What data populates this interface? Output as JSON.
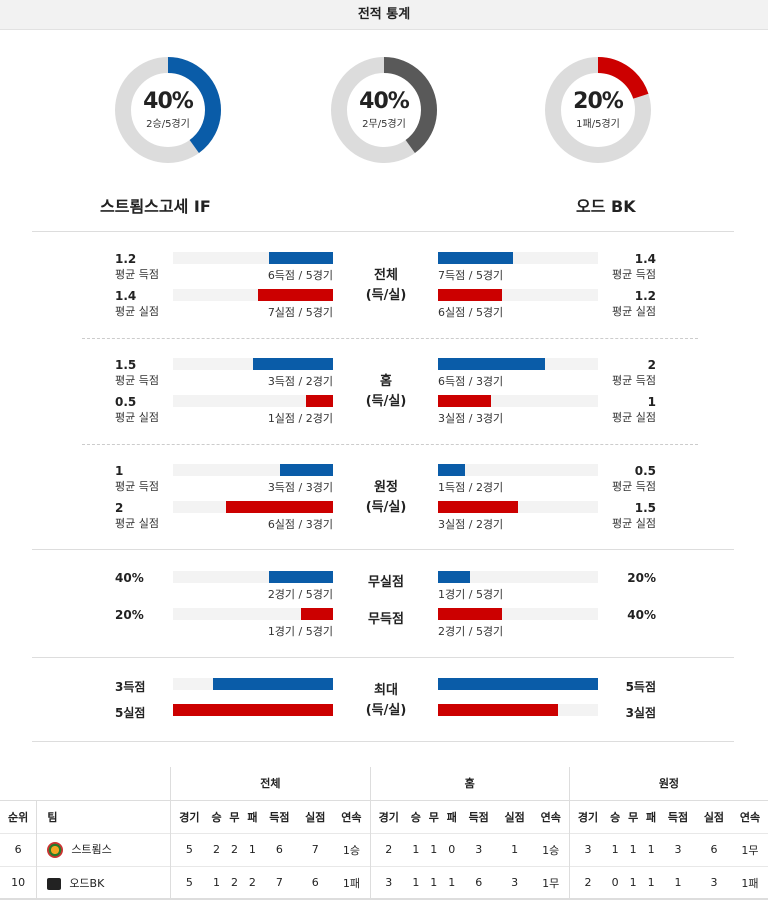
{
  "header": {
    "title": "전적 통계"
  },
  "colors": {
    "blue": "#0a5ca8",
    "red": "#cc0000",
    "gray": "#595959",
    "track": "#dcdcdc"
  },
  "donuts": [
    {
      "pct": "40%",
      "sub": "2승/5경기",
      "fraction": 0.4,
      "color": "#0a5ca8"
    },
    {
      "pct": "40%",
      "sub": "2무/5경기",
      "fraction": 0.4,
      "color": "#595959"
    },
    {
      "pct": "20%",
      "sub": "1패/5경기",
      "fraction": 0.2,
      "color": "#cc0000"
    }
  ],
  "teams": {
    "home": "스트룀스고세 IF",
    "away": "오드 BK"
  },
  "sections": [
    {
      "mid": [
        "전체",
        "(득/실)"
      ],
      "rows": [
        {
          "lv": "1.2",
          "ll": "평균 득점",
          "lb": "6득점 / 5경기",
          "lf": 0.4,
          "rb": "7득점 / 5경기",
          "rf": 0.47,
          "rv": "1.4",
          "rl": "평균 득점",
          "color": "blue"
        },
        {
          "lv": "1.4",
          "ll": "평균 실점",
          "lb": "7실점 / 5경기",
          "lf": 0.47,
          "rb": "6실점 / 5경기",
          "rf": 0.4,
          "rv": "1.2",
          "rl": "평균 실점",
          "color": "red"
        }
      ]
    },
    {
      "mid": [
        "홈",
        "(득/실)"
      ],
      "rows": [
        {
          "lv": "1.5",
          "ll": "평균 득점",
          "lb": "3득점 / 2경기",
          "lf": 0.5,
          "rb": "6득점 / 3경기",
          "rf": 0.67,
          "rv": "2",
          "rl": "평균 득점",
          "color": "blue"
        },
        {
          "lv": "0.5",
          "ll": "평균 실점",
          "lb": "1실점 / 2경기",
          "lf": 0.17,
          "rb": "3실점 / 3경기",
          "rf": 0.33,
          "rv": "1",
          "rl": "평균 실점",
          "color": "red"
        }
      ]
    },
    {
      "mid": [
        "원정",
        "(득/실)"
      ],
      "rows": [
        {
          "lv": "1",
          "ll": "평균 득점",
          "lb": "3득점 / 3경기",
          "lf": 0.33,
          "rb": "1득점 / 2경기",
          "rf": 0.17,
          "rv": "0.5",
          "rl": "평균 득점",
          "color": "blue"
        },
        {
          "lv": "2",
          "ll": "평균 실점",
          "lb": "6실점 / 3경기",
          "lf": 0.67,
          "rb": "3실점 / 2경기",
          "rf": 0.5,
          "rv": "1.5",
          "rl": "평균 실점",
          "color": "red"
        }
      ]
    }
  ],
  "pct_rows": [
    {
      "mid": "무실점",
      "lv": "40%",
      "lb": "2경기 / 5경기",
      "lf": 0.4,
      "rb": "1경기 / 5경기",
      "rf": 0.2,
      "rv": "20%",
      "color": "blue"
    },
    {
      "mid": "무득점",
      "lv": "20%",
      "lb": "1경기 / 5경기",
      "lf": 0.2,
      "rb": "2경기 / 5경기",
      "rf": 0.4,
      "rv": "40%",
      "color": "red"
    }
  ],
  "max": {
    "mid": [
      "최대",
      "(득/실)"
    ],
    "rows": [
      {
        "lv": "3득점",
        "lf": 0.75,
        "rf": 1.0,
        "rv": "5득점",
        "color": "blue"
      },
      {
        "lv": "5실점",
        "lf": 1.0,
        "rf": 0.75,
        "rv": "3실점",
        "color": "red"
      }
    ]
  },
  "table": {
    "groups": [
      "전체",
      "홈",
      "원정"
    ],
    "cols": [
      "순위",
      "팀",
      "경기",
      "승",
      "무",
      "패",
      "득점",
      "실점",
      "연속",
      "경기",
      "승",
      "무",
      "패",
      "득점",
      "실점",
      "연속",
      "경기",
      "승",
      "무",
      "패",
      "득점",
      "실점",
      "연속"
    ],
    "rows": [
      [
        "6",
        "스트룀스",
        "5",
        "2",
        "2",
        "1",
        "6",
        "7",
        "1승",
        "2",
        "1",
        "1",
        "0",
        "3",
        "1",
        "1승",
        "3",
        "1",
        "1",
        "1",
        "3",
        "6",
        "1무"
      ],
      [
        "10",
        "오드BK",
        "5",
        "1",
        "2",
        "2",
        "7",
        "6",
        "1패",
        "3",
        "1",
        "1",
        "1",
        "6",
        "3",
        "1무",
        "2",
        "0",
        "1",
        "1",
        "1",
        "3",
        "1패"
      ]
    ]
  }
}
